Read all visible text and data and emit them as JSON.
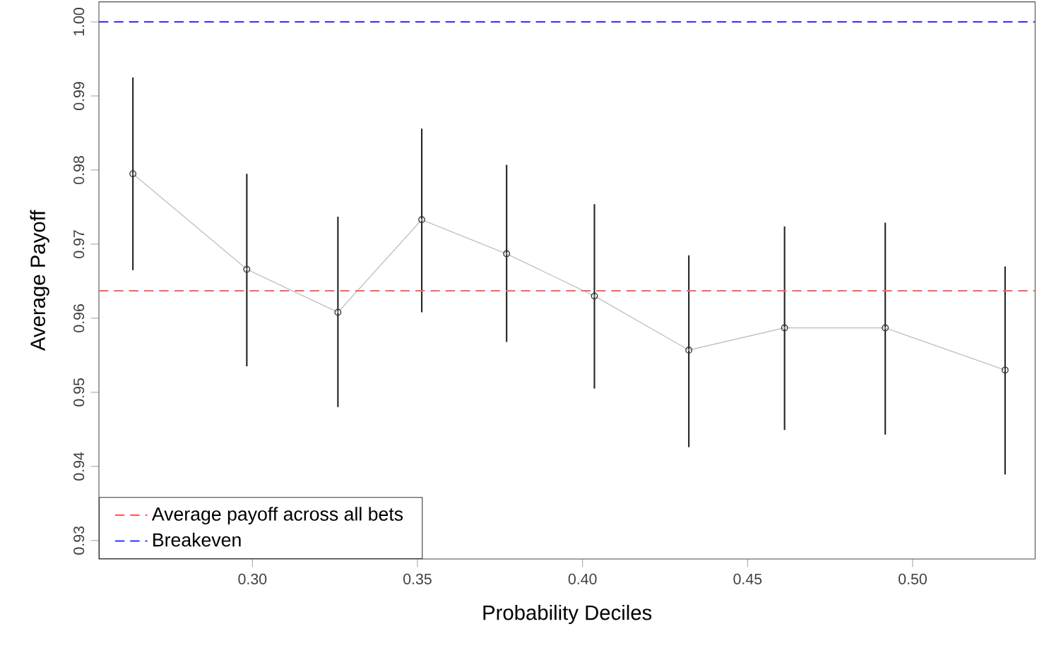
{
  "chart_data": {
    "type": "line",
    "xlabel": "Probability Deciles",
    "ylabel": "Average Payoff",
    "x": [
      0.2638,
      0.2983,
      0.3259,
      0.3513,
      0.377,
      0.4036,
      0.4322,
      0.4612,
      0.4917,
      0.528
    ],
    "series": [
      {
        "color": "#c0c0c0",
        "values": [
          0.9795,
          0.9666,
          0.9608,
          0.9733,
          0.9687,
          0.963,
          0.9557,
          0.9587,
          0.9587,
          0.953
        ],
        "errors": [
          [
            0.9665,
            0.9925
          ],
          [
            0.9535,
            0.9795
          ],
          [
            0.948,
            0.9737
          ],
          [
            0.9608,
            0.9856
          ],
          [
            0.9568,
            0.9807
          ],
          [
            0.9505,
            0.9754
          ],
          [
            0.9426,
            0.9685
          ],
          [
            0.9449,
            0.9724
          ],
          [
            0.9443,
            0.9729
          ],
          [
            0.9389,
            0.967
          ]
        ]
      }
    ],
    "marker": "circle",
    "line_style": "solid",
    "xlim": [
      0.2535,
      0.5371
    ],
    "ylim": [
      0.9275,
      1.0027
    ],
    "xticks": [
      {
        "value": 0.3,
        "label": "0.30"
      },
      {
        "value": 0.35,
        "label": "0.35"
      },
      {
        "value": 0.4,
        "label": "0.40"
      },
      {
        "value": 0.45,
        "label": "0.45"
      },
      {
        "value": 0.5,
        "label": "0.50"
      }
    ],
    "yticks": [
      {
        "value": 0.93,
        "label": "0.93"
      },
      {
        "value": 0.94,
        "label": "0.94"
      },
      {
        "value": 0.95,
        "label": "0.95"
      },
      {
        "value": 0.96,
        "label": "0.96"
      },
      {
        "value": 0.97,
        "label": "0.97"
      },
      {
        "value": 0.98,
        "label": "0.98"
      },
      {
        "value": 0.99,
        "label": "0.99"
      },
      {
        "value": 1.0,
        "label": "1.00"
      }
    ],
    "ref_lines": [
      {
        "axis": "y",
        "value": 0.9637,
        "label": "Average payoff across all bets",
        "color": "#ff6060",
        "line_style": "dashed"
      },
      {
        "axis": "y",
        "value": 1.0,
        "label": "Breakeven",
        "color": "#3030ff",
        "line_style": "dashed"
      }
    ],
    "grid": false,
    "legend": "bottom left"
  }
}
